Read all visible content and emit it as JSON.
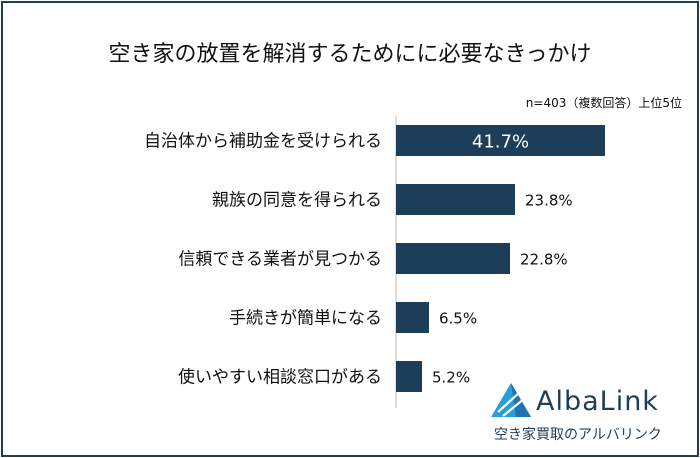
{
  "chart_data": {
    "type": "bar",
    "orientation": "horizontal",
    "title": "空き家の放置を解消するためにに必要なきっかけ",
    "subtitle": "n=403（複数回答）上位5位",
    "categories": [
      "自治体から補助金を受けられる",
      "親族の同意を得られる",
      "信頼できる業者が見つかる",
      "手続きが簡単になる",
      "使いやすい相談窓口がある"
    ],
    "values": [
      41.7,
      23.8,
      22.8,
      6.5,
      5.2
    ],
    "value_labels": [
      "41.7%",
      "23.8%",
      "22.8%",
      "6.5%",
      "5.2%"
    ],
    "xlim": [
      0,
      41.7
    ],
    "grid": false,
    "legend": "none",
    "bar_color": "#1c3e58",
    "inside_label_color": "#ffffff",
    "label_color": "#111111"
  },
  "brand": {
    "name": "AlbaLink",
    "tagline": "空き家買取のアルバリンク",
    "color": "#1c3e58",
    "accent": "#2a9fd6"
  }
}
